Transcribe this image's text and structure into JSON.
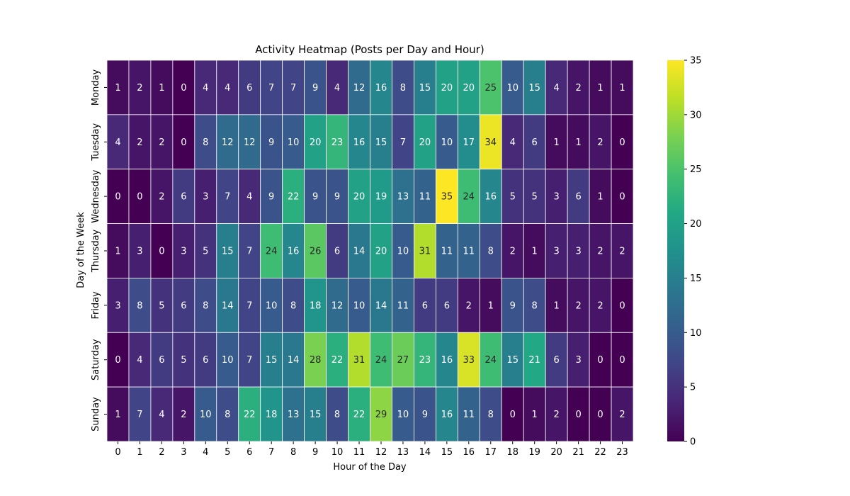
{
  "chart_data": {
    "type": "heatmap",
    "title": "Activity Heatmap (Posts per Day and Hour)",
    "xlabel": "Hour of the Day",
    "ylabel": "Day of the Week",
    "x_categories": [
      "0",
      "1",
      "2",
      "3",
      "4",
      "5",
      "6",
      "7",
      "8",
      "9",
      "10",
      "11",
      "12",
      "13",
      "14",
      "15",
      "16",
      "17",
      "18",
      "19",
      "20",
      "21",
      "22",
      "23"
    ],
    "y_categories": [
      "Monday",
      "Tuesday",
      "Wednesday",
      "Thursday",
      "Friday",
      "Saturday",
      "Sunday"
    ],
    "values": [
      [
        1,
        2,
        1,
        0,
        4,
        4,
        6,
        7,
        7,
        9,
        4,
        12,
        16,
        8,
        15,
        20,
        20,
        25,
        10,
        15,
        4,
        2,
        1,
        1
      ],
      [
        4,
        2,
        2,
        0,
        8,
        12,
        12,
        9,
        10,
        20,
        23,
        16,
        15,
        7,
        20,
        10,
        17,
        34,
        4,
        6,
        1,
        1,
        2,
        0
      ],
      [
        0,
        0,
        2,
        6,
        3,
        7,
        4,
        9,
        22,
        9,
        9,
        20,
        19,
        13,
        11,
        35,
        24,
        16,
        5,
        5,
        3,
        6,
        1,
        0
      ],
      [
        1,
        3,
        0,
        3,
        5,
        15,
        7,
        24,
        16,
        26,
        6,
        14,
        20,
        10,
        31,
        11,
        11,
        8,
        2,
        1,
        3,
        3,
        2,
        2
      ],
      [
        3,
        8,
        5,
        6,
        8,
        14,
        7,
        10,
        8,
        18,
        12,
        10,
        14,
        11,
        6,
        6,
        2,
        1,
        9,
        8,
        1,
        2,
        2,
        0
      ],
      [
        0,
        4,
        6,
        5,
        6,
        10,
        7,
        15,
        14,
        28,
        22,
        31,
        24,
        27,
        23,
        16,
        33,
        24,
        15,
        21,
        6,
        3,
        0,
        0
      ],
      [
        1,
        7,
        4,
        2,
        10,
        8,
        22,
        18,
        13,
        15,
        8,
        22,
        29,
        10,
        9,
        16,
        11,
        8,
        0,
        1,
        2,
        0,
        0,
        2
      ]
    ],
    "colorbar": {
      "colormap": "viridis",
      "vmin": 0,
      "vmax": 35,
      "ticks": [
        "0",
        "5",
        "10",
        "15",
        "20",
        "25",
        "30",
        "35"
      ]
    },
    "annotations": "cell values shown",
    "grid": "white cell borders",
    "legend": "colorbar right"
  }
}
